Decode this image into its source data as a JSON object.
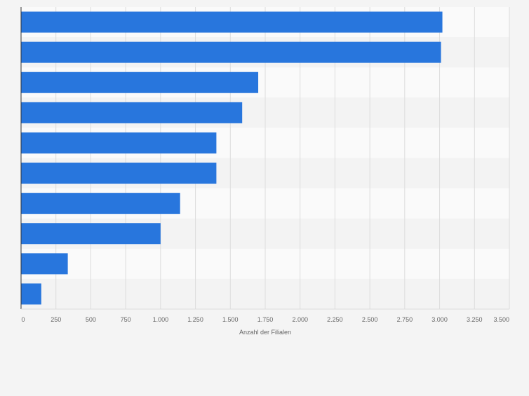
{
  "colors": {
    "bar": "#2876dd",
    "band_light": "#fafafa",
    "band_dark": "#f3f3f3",
    "grid": "#dcdcdc",
    "axis": "#333333",
    "tick_text": "#666666"
  },
  "chart_data": {
    "type": "bar",
    "orientation": "horizontal",
    "categories": [
      "",
      "",
      "",
      "",
      "",
      "",
      "",
      "",
      "",
      ""
    ],
    "values": [
      3020,
      3010,
      1700,
      1585,
      1400,
      1400,
      1140,
      1000,
      335,
      145
    ],
    "xlabel": "Anzahl der Filialen",
    "xlim": [
      0,
      3500
    ],
    "xticks": [
      0,
      250,
      500,
      750,
      1000,
      1250,
      1500,
      1750,
      2000,
      2250,
      2500,
      2750,
      3000,
      3250,
      3500
    ],
    "xtick_labels": [
      "0",
      "250",
      "500",
      "750",
      "1.000",
      "1.250",
      "1.500",
      "1.750",
      "2.000",
      "2.250",
      "2.500",
      "2.750",
      "3.000",
      "3.250",
      "3.500"
    ],
    "grid": true,
    "legend": false
  }
}
